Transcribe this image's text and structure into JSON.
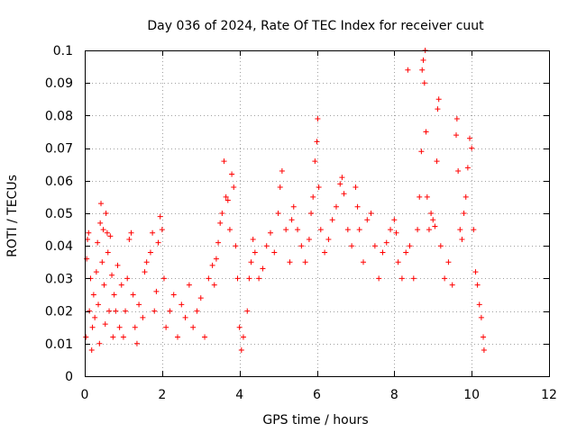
{
  "chart_data": {
    "type": "scatter",
    "title": "Day 036 of 2024, Rate Of TEC Index for receiver cuut",
    "xlabel": "GPS time / hours",
    "ylabel": "ROTI / TECUs",
    "xlim": [
      0,
      12
    ],
    "ylim": [
      0,
      0.1
    ],
    "grid": true,
    "marker": "plus",
    "color": "#ff0000",
    "xticks": [
      "0",
      "2",
      "4",
      "6",
      "8",
      "10",
      "12"
    ],
    "yticks": [
      "0",
      "0.01",
      "0.02",
      "0.03",
      "0.04",
      "0.05",
      "0.06",
      "0.07",
      "0.08",
      "0.09",
      "0.1"
    ],
    "series": [
      {
        "name": "ROTI",
        "points": [
          [
            0.03,
            0.012
          ],
          [
            0.05,
            0.036
          ],
          [
            0.07,
            0.042
          ],
          [
            0.1,
            0.044
          ],
          [
            0.12,
            0.02
          ],
          [
            0.15,
            0.03
          ],
          [
            0.18,
            0.008
          ],
          [
            0.2,
            0.015
          ],
          [
            0.23,
            0.025
          ],
          [
            0.26,
            0.018
          ],
          [
            0.3,
            0.032
          ],
          [
            0.33,
            0.041
          ],
          [
            0.35,
            0.022
          ],
          [
            0.38,
            0.01
          ],
          [
            0.4,
            0.047
          ],
          [
            0.42,
            0.053
          ],
          [
            0.45,
            0.035
          ],
          [
            0.48,
            0.045
          ],
          [
            0.5,
            0.028
          ],
          [
            0.53,
            0.016
          ],
          [
            0.55,
            0.05
          ],
          [
            0.58,
            0.044
          ],
          [
            0.6,
            0.038
          ],
          [
            0.63,
            0.02
          ],
          [
            0.66,
            0.043
          ],
          [
            0.7,
            0.031
          ],
          [
            0.73,
            0.012
          ],
          [
            0.76,
            0.025
          ],
          [
            0.8,
            0.02
          ],
          [
            0.85,
            0.034
          ],
          [
            0.9,
            0.015
          ],
          [
            0.95,
            0.028
          ],
          [
            1.0,
            0.012
          ],
          [
            1.05,
            0.02
          ],
          [
            1.1,
            0.03
          ],
          [
            1.15,
            0.042
          ],
          [
            1.2,
            0.044
          ],
          [
            1.25,
            0.025
          ],
          [
            1.3,
            0.015
          ],
          [
            1.35,
            0.01
          ],
          [
            1.4,
            0.022
          ],
          [
            1.5,
            0.018
          ],
          [
            1.55,
            0.032
          ],
          [
            1.6,
            0.035
          ],
          [
            1.7,
            0.038
          ],
          [
            1.75,
            0.044
          ],
          [
            1.8,
            0.02
          ],
          [
            1.85,
            0.026
          ],
          [
            1.9,
            0.041
          ],
          [
            1.95,
            0.049
          ],
          [
            2.0,
            0.045
          ],
          [
            2.05,
            0.03
          ],
          [
            2.1,
            0.015
          ],
          [
            2.2,
            0.02
          ],
          [
            2.3,
            0.025
          ],
          [
            2.4,
            0.012
          ],
          [
            2.5,
            0.022
          ],
          [
            2.6,
            0.018
          ],
          [
            2.7,
            0.028
          ],
          [
            2.8,
            0.015
          ],
          [
            2.9,
            0.02
          ],
          [
            3.0,
            0.024
          ],
          [
            3.1,
            0.012
          ],
          [
            3.2,
            0.03
          ],
          [
            3.3,
            0.034
          ],
          [
            3.35,
            0.028
          ],
          [
            3.4,
            0.036
          ],
          [
            3.45,
            0.041
          ],
          [
            3.5,
            0.047
          ],
          [
            3.55,
            0.05
          ],
          [
            3.6,
            0.066
          ],
          [
            3.65,
            0.055
          ],
          [
            3.7,
            0.054
          ],
          [
            3.75,
            0.045
          ],
          [
            3.8,
            0.062
          ],
          [
            3.85,
            0.058
          ],
          [
            3.9,
            0.04
          ],
          [
            3.95,
            0.03
          ],
          [
            4.0,
            0.015
          ],
          [
            4.05,
            0.008
          ],
          [
            4.1,
            0.012
          ],
          [
            4.2,
            0.02
          ],
          [
            4.25,
            0.03
          ],
          [
            4.3,
            0.035
          ],
          [
            4.35,
            0.042
          ],
          [
            4.4,
            0.038
          ],
          [
            4.5,
            0.03
          ],
          [
            4.6,
            0.033
          ],
          [
            4.7,
            0.04
          ],
          [
            4.8,
            0.044
          ],
          [
            4.9,
            0.038
          ],
          [
            5.0,
            0.05
          ],
          [
            5.05,
            0.058
          ],
          [
            5.1,
            0.063
          ],
          [
            5.2,
            0.045
          ],
          [
            5.3,
            0.035
          ],
          [
            5.35,
            0.048
          ],
          [
            5.4,
            0.052
          ],
          [
            5.5,
            0.045
          ],
          [
            5.6,
            0.04
          ],
          [
            5.7,
            0.035
          ],
          [
            5.8,
            0.042
          ],
          [
            5.85,
            0.05
          ],
          [
            5.9,
            0.055
          ],
          [
            5.95,
            0.066
          ],
          [
            6.0,
            0.072
          ],
          [
            6.02,
            0.079
          ],
          [
            6.05,
            0.058
          ],
          [
            6.1,
            0.045
          ],
          [
            6.2,
            0.038
          ],
          [
            6.3,
            0.042
          ],
          [
            6.4,
            0.048
          ],
          [
            6.5,
            0.052
          ],
          [
            6.6,
            0.059
          ],
          [
            6.65,
            0.061
          ],
          [
            6.7,
            0.056
          ],
          [
            6.8,
            0.045
          ],
          [
            6.9,
            0.04
          ],
          [
            7.0,
            0.058
          ],
          [
            7.05,
            0.052
          ],
          [
            7.1,
            0.045
          ],
          [
            7.2,
            0.035
          ],
          [
            7.3,
            0.048
          ],
          [
            7.4,
            0.05
          ],
          [
            7.5,
            0.04
          ],
          [
            7.6,
            0.03
          ],
          [
            7.7,
            0.038
          ],
          [
            7.8,
            0.041
          ],
          [
            7.9,
            0.045
          ],
          [
            8.0,
            0.048
          ],
          [
            8.05,
            0.044
          ],
          [
            8.1,
            0.035
          ],
          [
            8.2,
            0.03
          ],
          [
            8.3,
            0.038
          ],
          [
            8.35,
            0.094
          ],
          [
            8.4,
            0.04
          ],
          [
            8.5,
            0.03
          ],
          [
            8.6,
            0.045
          ],
          [
            8.65,
            0.055
          ],
          [
            8.7,
            0.069
          ],
          [
            8.72,
            0.094
          ],
          [
            8.75,
            0.097
          ],
          [
            8.78,
            0.09
          ],
          [
            8.8,
            0.1
          ],
          [
            8.82,
            0.075
          ],
          [
            8.85,
            0.055
          ],
          [
            8.9,
            0.045
          ],
          [
            8.95,
            0.05
          ],
          [
            9.0,
            0.048
          ],
          [
            9.05,
            0.046
          ],
          [
            9.1,
            0.066
          ],
          [
            9.12,
            0.082
          ],
          [
            9.15,
            0.085
          ],
          [
            9.2,
            0.04
          ],
          [
            9.3,
            0.03
          ],
          [
            9.4,
            0.035
          ],
          [
            9.5,
            0.028
          ],
          [
            9.6,
            0.074
          ],
          [
            9.62,
            0.079
          ],
          [
            9.65,
            0.063
          ],
          [
            9.7,
            0.045
          ],
          [
            9.75,
            0.042
          ],
          [
            9.8,
            0.05
          ],
          [
            9.85,
            0.055
          ],
          [
            9.9,
            0.064
          ],
          [
            9.95,
            0.073
          ],
          [
            10.0,
            0.07
          ],
          [
            10.05,
            0.045
          ],
          [
            10.1,
            0.032
          ],
          [
            10.15,
            0.028
          ],
          [
            10.2,
            0.022
          ],
          [
            10.25,
            0.018
          ],
          [
            10.3,
            0.012
          ],
          [
            10.32,
            0.008
          ]
        ]
      }
    ]
  }
}
